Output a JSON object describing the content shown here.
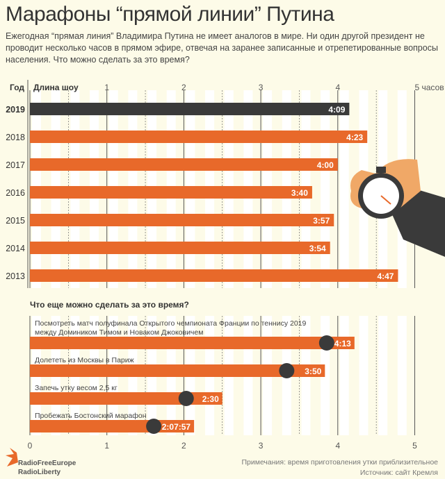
{
  "title": "Марафоны “прямой линии” Путина",
  "subtitle": "Ежегодная “прямая линия” Владимира Путина не имеет аналогов в мире. Ни один другой президент не проводит несколько часов в прямом эфире, отвечая на заранее записанные и отрепетированные вопросы населения. Что можно сделать за это время?",
  "chart_data": [
    {
      "type": "bar",
      "orientation": "horizontal",
      "xlabel": "Длина шоу",
      "ylabel": "Год",
      "xlim": [
        0,
        5
      ],
      "tick_labels": [
        "1",
        "2",
        "3",
        "4",
        "5 часов"
      ],
      "categories": [
        "2019",
        "2018",
        "2017",
        "2016",
        "2015",
        "2014",
        "2013"
      ],
      "values_hours": [
        4.15,
        4.383,
        4.0,
        3.667,
        3.95,
        3.9,
        4.783
      ],
      "labels": [
        "4:09",
        "4:23",
        "4:00",
        "3:40",
        "3:57",
        "3:54",
        "4:47"
      ],
      "highlight": "2019"
    },
    {
      "type": "bar",
      "orientation": "horizontal",
      "title": "Что еще можно сделать за это время?",
      "xlim": [
        0,
        5
      ],
      "tick_labels": [
        "0",
        "1",
        "2",
        "3",
        "4",
        "5"
      ],
      "categories": [
        "Посмотреть матч полуфинала Открытого чемпионата Франции по теннису 2019",
        "Долететь из Москвы в Париж",
        "Запечь утку весом 2,5 кг",
        "Пробежать Бостонский марафон"
      ],
      "category_line2": [
        "между Домиником Тимом и Новаком Джоковичем",
        "",
        "",
        ""
      ],
      "values_hours": [
        4.217,
        3.833,
        2.5,
        2.133
      ],
      "labels": [
        "4:13",
        "3:50",
        "2:30",
        "2:07:57"
      ],
      "icons": [
        "tennis-ball-icon",
        "airplane-icon",
        "roast-duck-icon",
        "runner-icon"
      ]
    }
  ],
  "colors": {
    "bar": "#e8692a",
    "highlight": "#3a3a3a",
    "bg": "#fdfbe8"
  },
  "logo": "RadioFreeEurope RadioLiberty",
  "note": "Примечания: время приготовления утки приблизительное",
  "source": "Источник: сайт Кремля"
}
